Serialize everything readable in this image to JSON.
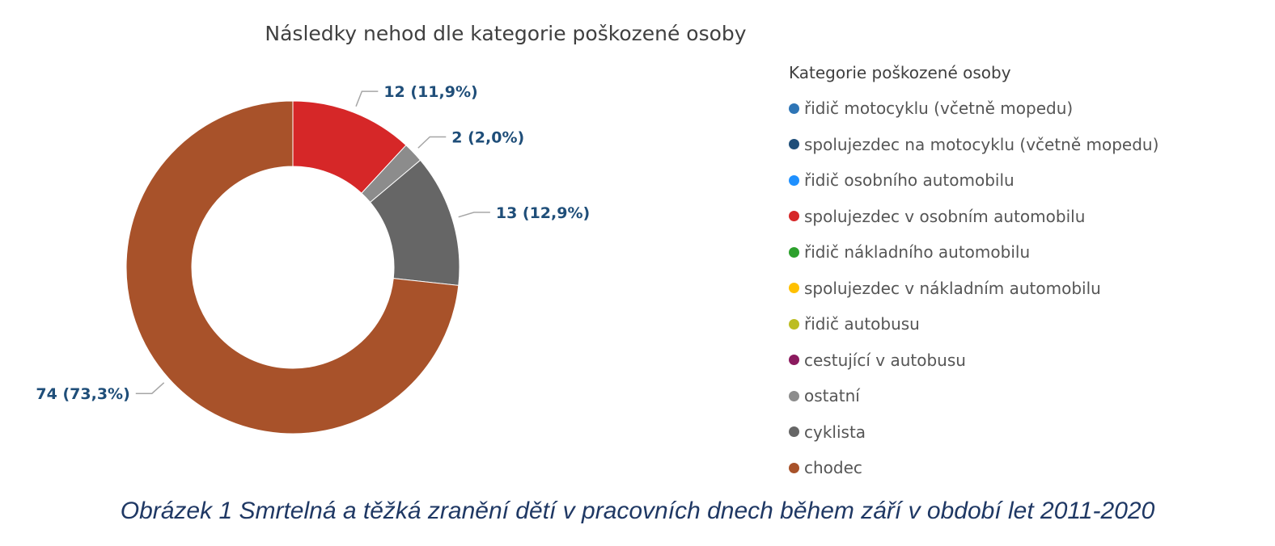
{
  "chart_data": {
    "type": "pie",
    "title": "Následky nehod dle kategorie poškozené osoby",
    "legend_title": "Kategorie poškozené osoby",
    "legend_position": "right",
    "categories": [
      "řidič motocyklu (včetně mopedu)",
      "spolujezdec na motocyklu (včetně mopedu)",
      "řidič osobního automobilu",
      "spolujezdec v osobním automobilu",
      "řidič nákladního automobilu",
      "spolujezdec v nákladním automobilu",
      "řidič autobusu",
      "cestující v autobusu",
      "ostatní",
      "cyklista",
      "chodec"
    ],
    "colors": [
      "#2e75b6",
      "#1f4e79",
      "#1e90ff",
      "#d62728",
      "#2ca02c",
      "#ffc000",
      "#bcbd22",
      "#8b1a5e",
      "#8c8c8c",
      "#666666",
      "#a8522a"
    ],
    "values": [
      0,
      0,
      0,
      12,
      0,
      0,
      0,
      0,
      2,
      13,
      74
    ],
    "data_labels": [
      "",
      "",
      "",
      "12 (11,9%)",
      "",
      "",
      "",
      "",
      "2 (2,0%)",
      "13 (12,9%)",
      "74 (73,3%)"
    ],
    "label_color": "#1f4e79"
  },
  "caption": "Obrázek 1 Smrtelná a těžká zranění dětí v pracovních dnech během září v období let 2011-2020"
}
